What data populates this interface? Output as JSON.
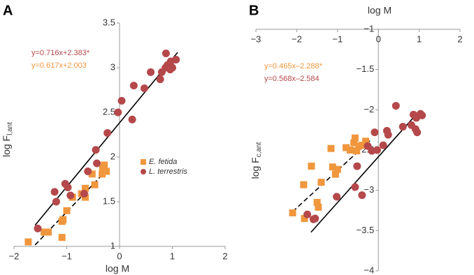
{
  "chart_data": [
    {
      "type": "scatter",
      "panel_label": "A",
      "x_label": "log M",
      "y_label": "log F",
      "y_label_sub": "l,ant",
      "x_axis_position": "bottom",
      "legend": "right",
      "xlim": [
        -2,
        2
      ],
      "ylim": [
        1,
        3.5
      ],
      "xticks": [
        {
          "value": -2,
          "label": "−2"
        },
        {
          "value": -1,
          "label": "−1"
        },
        0,
        1,
        2
      ],
      "yticks": [
        1,
        1.5,
        2,
        2.5,
        3,
        3.5
      ],
      "annotations": [
        {
          "text": "y=0.716x+2.383*",
          "color": "#b5484a"
        },
        {
          "text": "y=0.617x+2.003",
          "color": "#f0963c"
        }
      ],
      "series": [
        {
          "name": "E. fetida",
          "color": "#f0963c",
          "marker": "square",
          "x": [
            -1.73,
            -1.43,
            -1.35,
            -1.09,
            -1.09,
            -1.07,
            -1.0,
            -0.89,
            -0.72,
            -0.65,
            -0.65,
            -0.47,
            -0.52,
            -0.33,
            -0.32,
            -0.29,
            -0.25
          ],
          "values": [
            1.05,
            1.16,
            1.16,
            1.1,
            1.28,
            1.3,
            1.4,
            1.55,
            1.59,
            1.55,
            1.65,
            1.69,
            1.81,
            1.81,
            1.87,
            1.91,
            1.84
          ]
        },
        {
          "name": "L. terrestris",
          "color": "#b5484a",
          "marker": "circle",
          "x": [
            -1.55,
            -1.23,
            -1.2,
            -1.03,
            -0.98,
            -0.93,
            -0.67,
            -0.6,
            -0.43,
            -0.45,
            -0.23,
            -0.03,
            0.04,
            0.24,
            0.27,
            0.47,
            0.59,
            0.77,
            0.8,
            0.87,
            0.91,
            0.96,
            0.97,
            0.88,
            1.07,
            1.0
          ],
          "values": [
            1.2,
            1.61,
            1.5,
            1.7,
            1.66,
            1.57,
            1.59,
            1.84,
            1.93,
            2.08,
            2.27,
            2.5,
            2.63,
            2.42,
            2.8,
            2.77,
            2.95,
            2.87,
            2.95,
            3.0,
            3.03,
            2.98,
            3.07,
            3.16,
            3.09,
            3.0
          ]
        }
      ],
      "fit_lines": [
        {
          "dashed": false,
          "x": [
            -1.6,
            1.1
          ],
          "values": [
            1.237,
            3.171
          ]
        },
        {
          "dashed": true,
          "x": [
            -1.6,
            -0.19
          ],
          "values": [
            1.016,
            1.886
          ]
        }
      ]
    },
    {
      "type": "scatter",
      "panel_label": "B",
      "x_label": "log M",
      "y_label": "log F",
      "y_label_sub": "c,ant",
      "x_axis_position": "top",
      "xlim": [
        -3,
        2
      ],
      "ylim": [
        -4,
        -1
      ],
      "xticks": [
        {
          "value": -3,
          "label": "−3"
        },
        {
          "value": -2,
          "label": "−2"
        },
        {
          "value": -1,
          "label": "−1"
        },
        0,
        1,
        2
      ],
      "yticks": [
        {
          "value": -4,
          "label": "−4"
        },
        {
          "value": -3.5,
          "label": "−3.5"
        },
        {
          "value": -3,
          "label": "−3"
        },
        {
          "value": -2.5,
          "label": "−2.5"
        },
        {
          "value": -2,
          "label": "−2"
        },
        {
          "value": -1.5,
          "label": "−1.5"
        },
        {
          "value": -1,
          "label": "−1"
        }
      ],
      "annotations": [
        {
          "text": "y=0.465x–2.288*",
          "color": "#f0963c"
        },
        {
          "text": "y=0.568x–2.584",
          "color": "#b5484a"
        }
      ],
      "series": [
        {
          "color": "#f0963c",
          "marker": "square",
          "x": [
            -2.1,
            -1.81,
            -1.83,
            -1.64,
            -1.5,
            -1.47,
            -1.4,
            -1.16,
            -1.12,
            -1.05,
            -1.0,
            -0.79,
            -0.69,
            -0.6,
            -0.57,
            -0.48,
            -0.4,
            -0.53,
            -0.31
          ],
          "values": [
            -3.28,
            -3.35,
            -2.93,
            -2.7,
            -3.15,
            -3.21,
            -2.9,
            -2.48,
            -2.71,
            -2.8,
            -2.74,
            -2.47,
            -2.5,
            -2.41,
            -2.35,
            -2.45,
            -2.44,
            -2.51,
            -2.39
          ]
        },
        {
          "color": "#b5484a",
          "marker": "circle",
          "x": [
            -1.74,
            -1.59,
            -1.55,
            -1.02,
            -0.57,
            -0.4,
            -0.52,
            -0.26,
            -0.16,
            -0.03,
            -0.09,
            0.12,
            0.21,
            0.24,
            0.43,
            0.6,
            0.81,
            0.86,
            0.91,
            0.95,
            0.93,
            1.03,
            1.07
          ],
          "values": [
            -3.3,
            -3.36,
            -3.35,
            -3.08,
            -2.96,
            -3.06,
            -2.7,
            -2.45,
            -2.51,
            -2.5,
            -2.28,
            -2.44,
            -2.26,
            -2.31,
            -1.95,
            -2.21,
            -2.19,
            -2.06,
            -2.24,
            -2.28,
            -2.1,
            -2.05,
            -2.07
          ]
        }
      ],
      "fit_lines": [
        {
          "dashed": false,
          "x": [
            -1.65,
            1.0
          ],
          "values": [
            -3.521,
            -2.016
          ]
        },
        {
          "dashed": true,
          "x": [
            -2.1,
            -0.2
          ],
          "values": [
            -3.265,
            -2.381
          ]
        }
      ]
    }
  ]
}
